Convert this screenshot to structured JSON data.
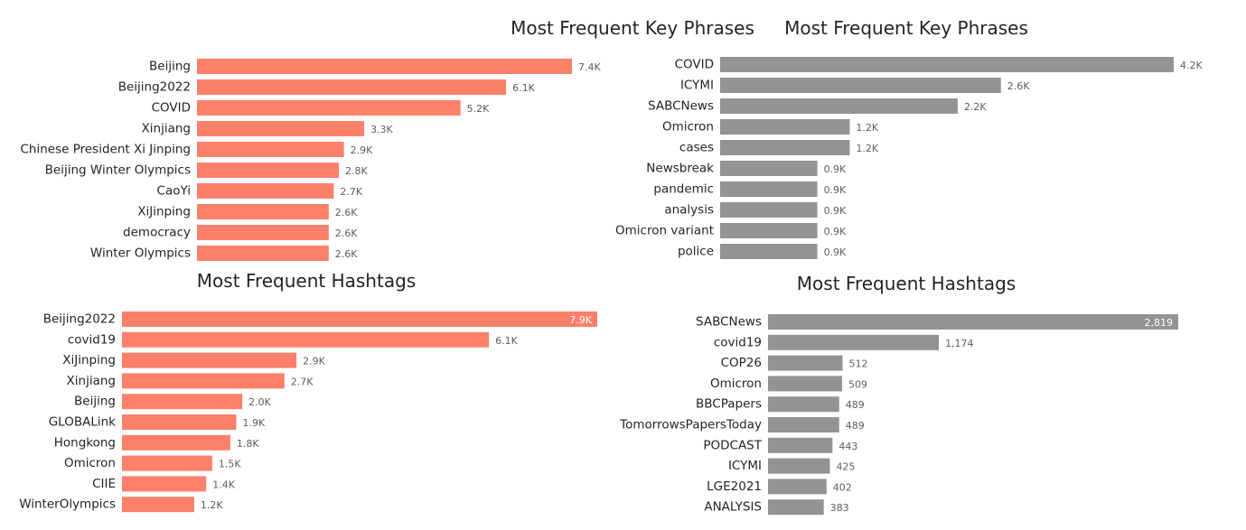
{
  "chart_data": [
    {
      "type": "bar",
      "orientation": "horizontal",
      "title": "Most Frequent Key Phrases",
      "color": "#fd806b",
      "categories": [
        "Beijing",
        "Beijing2022",
        "COVID",
        "Xinjiang",
        "Chinese President Xi Jinping",
        "Beijing Winter Olympics",
        "CaoYi",
        "XiJinping",
        "democracy",
        "Winter Olympics"
      ],
      "values": [
        7400,
        6100,
        5200,
        3300,
        2900,
        2800,
        2700,
        2600,
        2600,
        2600
      ],
      "labels": [
        "7.4K",
        "6.1K",
        "5.2K",
        "3.3K",
        "2.9K",
        "2.8K",
        "2.7K",
        "2.6K",
        "2.6K",
        "2.6K"
      ],
      "xlim": [
        0,
        7400
      ],
      "grid": false,
      "legend": "none"
    },
    {
      "type": "bar",
      "orientation": "horizontal",
      "title": "Most Frequent Key Phrases",
      "color": "#939393",
      "categories": [
        "COVID",
        "ICYMI",
        "SABCNews",
        "Omicron",
        "cases",
        "Newsbreak",
        "pandemic",
        "analysis",
        "Omicron variant",
        "police"
      ],
      "values": [
        4200,
        2600,
        2200,
        1200,
        1200,
        900,
        900,
        900,
        900,
        900
      ],
      "labels": [
        "4.2K",
        "2.6K",
        "2.2K",
        "1.2K",
        "1.2K",
        "0.9K",
        "0.9K",
        "0.9K",
        "0.9K",
        "0.9K"
      ],
      "xlim": [
        0,
        4200
      ],
      "grid": false,
      "legend": "none"
    },
    {
      "type": "bar",
      "orientation": "horizontal",
      "title": "Most Frequent Hashtags",
      "color": "#fd806b",
      "categories": [
        "Beijing2022",
        "covid19",
        "XiJinping",
        "Xinjiang",
        "Beijing",
        "GLOBALink",
        "Hongkong",
        "Omicron",
        "CIIE",
        "WinterOlympics"
      ],
      "values": [
        7900,
        6100,
        2900,
        2700,
        2000,
        1900,
        1800,
        1500,
        1400,
        1200
      ],
      "labels": [
        "7.9K",
        "6.1K",
        "2.9K",
        "2.7K",
        "2.0K",
        "1.9K",
        "1.8K",
        "1.5K",
        "1.4K",
        "1.2K"
      ],
      "xlim": [
        0,
        7900
      ],
      "grid": false,
      "legend": "none"
    },
    {
      "type": "bar",
      "orientation": "horizontal",
      "title": "Most Frequent Hashtags",
      "color": "#939393",
      "categories": [
        "SABCNews",
        "covid19",
        "COP26",
        "Omicron",
        "BBCPapers",
        "TomorrowsPapersToday",
        "PODCAST",
        "ICYMI",
        "LGE2021",
        "ANALYSIS"
      ],
      "values": [
        2819,
        1174,
        512,
        509,
        489,
        489,
        443,
        425,
        402,
        383
      ],
      "labels": [
        "2,819",
        "1,174",
        "512",
        "509",
        "489",
        "489",
        "443",
        "425",
        "402",
        "383"
      ],
      "xlim": [
        0,
        2819
      ],
      "grid": false,
      "legend": "none"
    }
  ]
}
